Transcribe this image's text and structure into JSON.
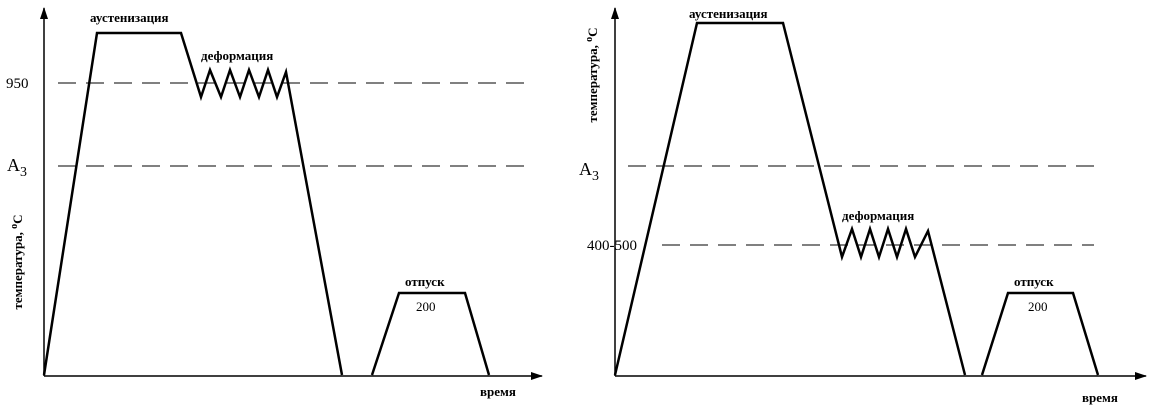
{
  "left": {
    "stage_austenitization": "аустенизация",
    "stage_deformation": "деформация",
    "level_deformation": "950",
    "level_a3": {
      "main": "A",
      "sub": "3"
    },
    "axis_y": {
      "text": "температура, ",
      "sup": "o",
      "unit": "C"
    },
    "stage_tempering": "отпуск",
    "tempering_temp": "200",
    "axis_x": "время"
  },
  "right": {
    "stage_austenitization": "аустенизация",
    "stage_deformation": "деформация",
    "level_deformation": "400-500",
    "level_a3": {
      "main": "A",
      "sub": "3"
    },
    "axis_y": {
      "text": "температура, ",
      "sup": "o",
      "unit": "C"
    },
    "stage_tempering": "отпуск",
    "tempering_temp": "200",
    "axis_x": "время"
  }
}
